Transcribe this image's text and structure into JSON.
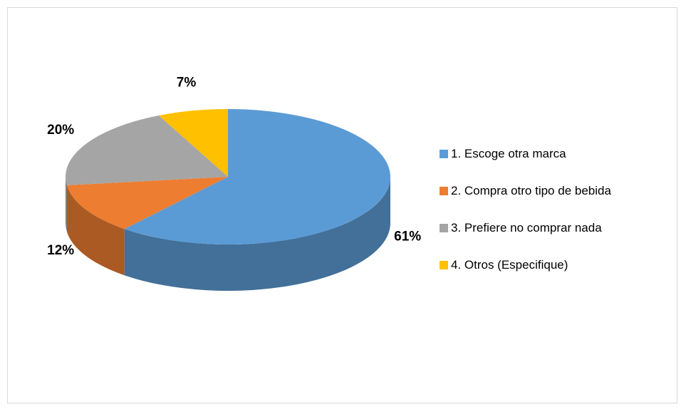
{
  "chart_data": {
    "type": "pie",
    "categories": [
      "1. Escoge otra marca",
      "2. Compra otro tipo de bebida",
      "3. Prefiere no comprar nada",
      "4. Otros (Especifique)"
    ],
    "values": [
      61,
      12,
      20,
      7
    ],
    "value_labels": [
      "61%",
      "12%",
      "20%",
      "7%"
    ],
    "colors": [
      "#5b9bd5",
      "#ed7d31",
      "#a5a5a5",
      "#ffc000"
    ],
    "legend": "right"
  }
}
